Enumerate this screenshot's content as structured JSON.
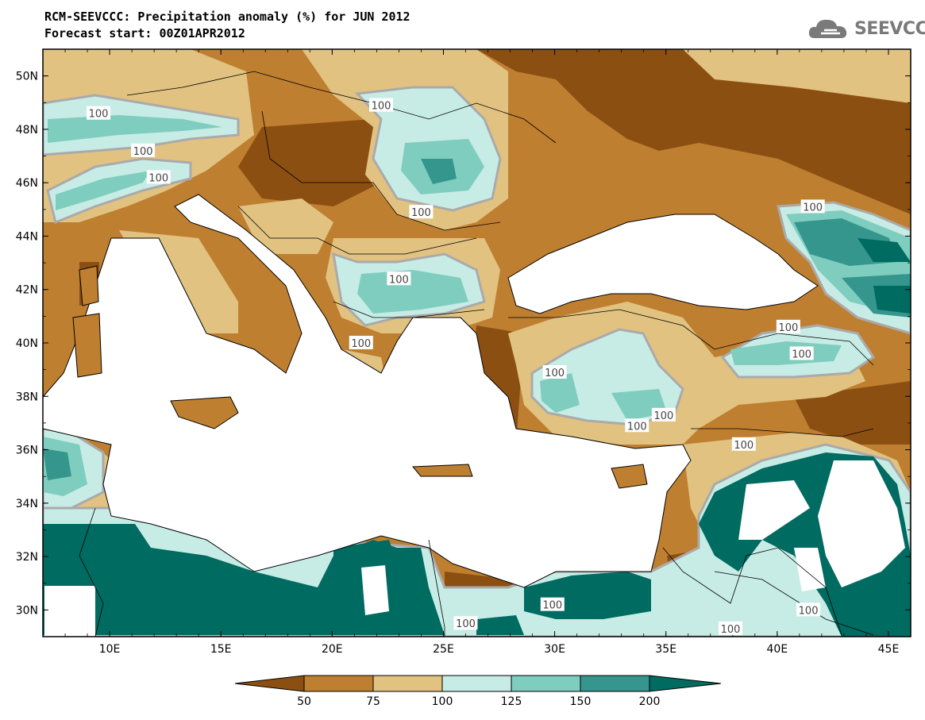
{
  "header": {
    "title_line1": "RCM-SEEVCCC: Precipitation anomaly (%) for JUN 2012",
    "title_line2": "Forecast start: 00Z01APR2012",
    "logo_text": "SEEVCCC",
    "logo_icon": "cloud-icon"
  },
  "axes": {
    "lat_labels": [
      "50N",
      "48N",
      "46N",
      "44N",
      "42N",
      "40N",
      "38N",
      "36N",
      "34N",
      "32N",
      "30N"
    ],
    "lon_labels": [
      "10E",
      "15E",
      "20E",
      "25E",
      "30E",
      "35E",
      "40E",
      "45E"
    ],
    "lat_range": [
      29,
      51
    ],
    "lon_range": [
      7,
      46
    ]
  },
  "contour_labels": [
    {
      "text": "100",
      "lon": 9.5,
      "lat": 48.6
    },
    {
      "text": "100",
      "lon": 11.5,
      "lat": 47.2
    },
    {
      "text": "100",
      "lon": 12.2,
      "lat": 46.2
    },
    {
      "text": "100",
      "lon": 22.2,
      "lat": 48.9
    },
    {
      "text": "100",
      "lon": 24.0,
      "lat": 44.9
    },
    {
      "text": "100",
      "lon": 23.0,
      "lat": 42.4
    },
    {
      "text": "100",
      "lon": 21.3,
      "lat": 40.0
    },
    {
      "text": "100",
      "lon": 30.0,
      "lat": 38.9
    },
    {
      "text": "100",
      "lon": 33.7,
      "lat": 36.9
    },
    {
      "text": "100",
      "lon": 34.9,
      "lat": 37.3
    },
    {
      "text": "100",
      "lon": 38.5,
      "lat": 36.2
    },
    {
      "text": "100",
      "lon": 41.6,
      "lat": 45.1
    },
    {
      "text": "100",
      "lon": 40.5,
      "lat": 40.6
    },
    {
      "text": "100",
      "lon": 41.1,
      "lat": 39.6
    },
    {
      "text": "100",
      "lon": 26.0,
      "lat": 29.5
    },
    {
      "text": "100",
      "lon": 29.9,
      "lat": 30.2
    },
    {
      "text": "100",
      "lon": 41.4,
      "lat": 30.0
    },
    {
      "text": "100",
      "lon": 37.9,
      "lat": 29.3
    }
  ],
  "colorbar": {
    "labels": [
      "50",
      "75",
      "100",
      "125",
      "150",
      "200"
    ],
    "colors": [
      "#8c4f12",
      "#bf7f30",
      "#e1c281",
      "#c7ece6",
      "#7fcdbf",
      "#35968d",
      "#006b61"
    ]
  },
  "legend": {
    "colors": {
      "lt50": "#8c4f12",
      "50_75": "#bf7f30",
      "75_100": "#e1c281",
      "100_125": "#c7ece6",
      "125_150": "#7fcdbf",
      "150_200": "#35968d",
      "gt200": "#006b61",
      "contour100": "#aaaaaa",
      "sea": "#ffffff"
    }
  }
}
